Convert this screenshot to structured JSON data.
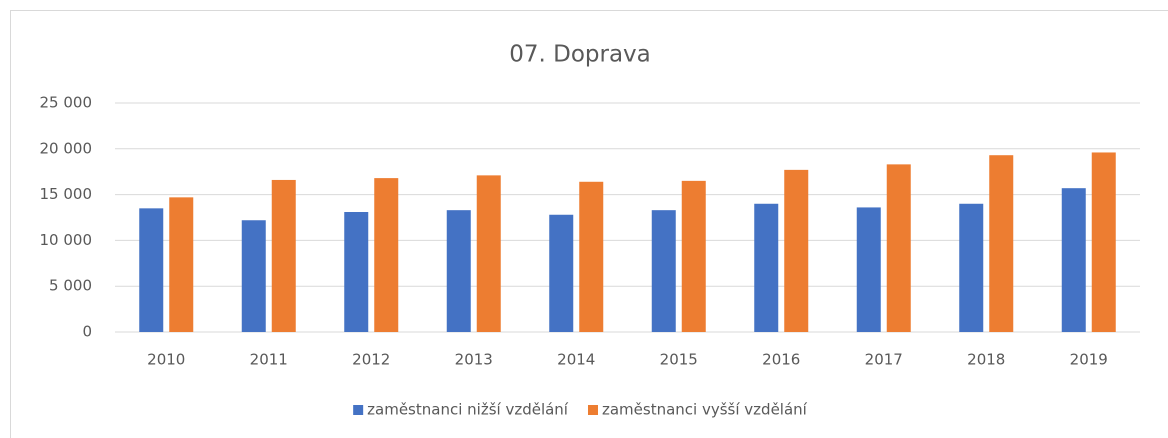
{
  "chart_data": {
    "type": "bar",
    "title": "07. Doprava",
    "categories": [
      "2010",
      "2011",
      "2012",
      "2013",
      "2014",
      "2015",
      "2016",
      "2017",
      "2018",
      "2019"
    ],
    "series": [
      {
        "name": "zaměstnanci nižší vzdělání",
        "color": "#4472c4",
        "values": [
          13500,
          12200,
          13100,
          13300,
          12800,
          13300,
          14000,
          13600,
          14000,
          15700
        ]
      },
      {
        "name": "zaměstnanci vyšší vzdělání",
        "color": "#ed7d31",
        "values": [
          14700,
          16600,
          16800,
          17100,
          16400,
          16500,
          17700,
          18300,
          19300,
          19600
        ]
      }
    ],
    "ylim": [
      0,
      25000
    ],
    "yticks": [
      0,
      {
        "value": 5000,
        "label": "5 000"
      },
      {
        "value": 10000,
        "label": "10 000"
      },
      {
        "value": 15000,
        "label": "15 000"
      },
      {
        "value": 20000,
        "label": "20 000"
      },
      {
        "value": 25000,
        "label": "25 000"
      }
    ],
    "grid": true,
    "legend": "bottom"
  }
}
